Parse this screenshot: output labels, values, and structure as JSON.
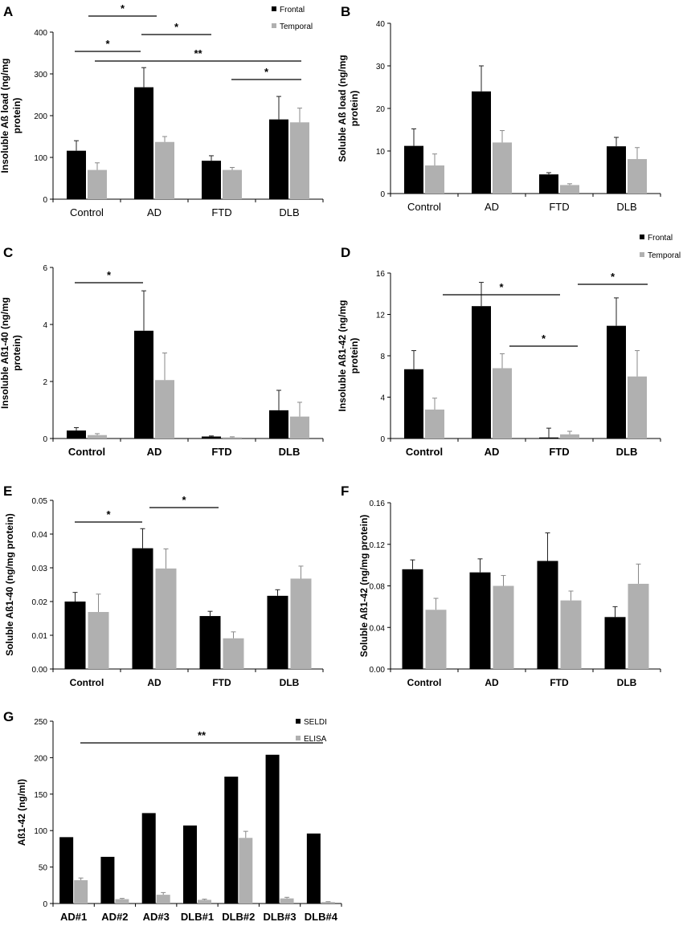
{
  "colors": {
    "frontal": "#000000",
    "temporal": "#b0b0b0",
    "axis": "#000000"
  },
  "chart_data": [
    {
      "type": "bar",
      "panel": "A",
      "categories": [
        "Control",
        "AD",
        "FTD",
        "DLB"
      ],
      "series": [
        {
          "name": "Frontal",
          "values": [
            116,
            268,
            92,
            191
          ],
          "errors": [
            24,
            47,
            12,
            55
          ]
        },
        {
          "name": "Temporal",
          "values": [
            70,
            137,
            70,
            184
          ],
          "errors": [
            17,
            13,
            6,
            34
          ]
        }
      ],
      "ylim": [
        0,
        400
      ],
      "yticks": [
        "0",
        "100",
        "200",
        "300",
        "400"
      ],
      "ylabel": [
        "Insoluble Aß load (ng/mg",
        "protein)"
      ],
      "legend": [
        "Frontal",
        "Temporal"
      ],
      "significance": [
        "*",
        "*",
        "*",
        "**",
        "*"
      ],
      "bold_ticks": false
    },
    {
      "type": "bar",
      "panel": "B",
      "categories": [
        "Control",
        "AD",
        "FTD",
        "DLB"
      ],
      "series": [
        {
          "name": "Frontal",
          "values": [
            11.2,
            24,
            4.5,
            11.1
          ],
          "errors": [
            4,
            6,
            0.4,
            2.1
          ]
        },
        {
          "name": "Temporal",
          "values": [
            6.6,
            12,
            2.0,
            8.1
          ],
          "errors": [
            2.7,
            2.8,
            0.3,
            2.7
          ]
        }
      ],
      "ylim": [
        0,
        40
      ],
      "yticks": [
        "0",
        "10",
        "20",
        "30",
        "40"
      ],
      "ylabel": [
        "Soluble Aß load (ng/mg",
        "protein)"
      ],
      "legend": [],
      "significance": [],
      "bold_ticks": false
    },
    {
      "type": "bar",
      "panel": "C",
      "categories": [
        "Control",
        "AD",
        "FTD",
        "DLB"
      ],
      "series": [
        {
          "name": "Frontal",
          "values": [
            0.28,
            3.78,
            0.07,
            0.99
          ],
          "errors": [
            0.1,
            1.4,
            0.02,
            0.7
          ]
        },
        {
          "name": "Temporal",
          "values": [
            0.12,
            2.05,
            0.04,
            0.77
          ],
          "errors": [
            0.05,
            0.95,
            0.02,
            0.5
          ]
        }
      ],
      "ylim": [
        0,
        6
      ],
      "yticks": [
        "0",
        "2",
        "4",
        "6"
      ],
      "ylabel": [
        "Insoluble Aß1-40 (ng/mg",
        "protein)"
      ],
      "legend": [],
      "significance": [
        "*"
      ],
      "bold_ticks": true
    },
    {
      "type": "bar",
      "panel": "D",
      "categories": [
        "Control",
        "AD",
        "FTD",
        "DLB"
      ],
      "series": [
        {
          "name": "Frontal",
          "values": [
            6.7,
            12.8,
            0.1,
            10.9
          ],
          "errors": [
            1.8,
            2.3,
            0.9,
            2.7
          ]
        },
        {
          "name": "Temporal",
          "values": [
            2.8,
            6.8,
            0.4,
            6.0
          ],
          "errors": [
            1.1,
            1.4,
            0.3,
            2.5
          ]
        }
      ],
      "ylim": [
        0,
        16
      ],
      "yticks": [
        "0",
        "4",
        "8",
        "12",
        "16"
      ],
      "ylabel": [
        "Insoluble Aß1-42 (ng/mg",
        "protein)"
      ],
      "legend": [
        "Frontal",
        "Temporal"
      ],
      "significance": [
        "*",
        "*",
        "*"
      ],
      "bold_ticks": true
    },
    {
      "type": "bar",
      "panel": "E",
      "categories": [
        "Control",
        "AD",
        "FTD",
        "DLB"
      ],
      "series": [
        {
          "name": "Frontal",
          "values": [
            0.02,
            0.0358,
            0.0157,
            0.0217
          ],
          "errors": [
            0.0027,
            0.0058,
            0.0014,
            0.0018
          ]
        },
        {
          "name": "Temporal",
          "values": [
            0.0169,
            0.0298,
            0.0091,
            0.0268
          ],
          "errors": [
            0.0053,
            0.0058,
            0.0019,
            0.0037
          ]
        }
      ],
      "ylim": [
        0,
        0.05
      ],
      "yticks": [
        "0.00",
        "0.01",
        "0.02",
        "0.03",
        "0.04",
        "0.05"
      ],
      "ylabel": [
        "Soluble Aß1-40 (ng/mg protein)"
      ],
      "legend": [],
      "significance": [
        "*",
        "*"
      ],
      "bold_ticks": true
    },
    {
      "type": "bar",
      "panel": "F",
      "categories": [
        "Control",
        "AD",
        "FTD",
        "DLB"
      ],
      "series": [
        {
          "name": "Frontal",
          "values": [
            0.096,
            0.093,
            0.104,
            0.05
          ],
          "errors": [
            0.009,
            0.013,
            0.027,
            0.01
          ]
        },
        {
          "name": "Temporal",
          "values": [
            0.057,
            0.08,
            0.066,
            0.082
          ],
          "errors": [
            0.011,
            0.01,
            0.009,
            0.019
          ]
        }
      ],
      "ylim": [
        0,
        0.16
      ],
      "yticks": [
        "0.00",
        "0.04",
        "0.08",
        "0.12",
        "0.16"
      ],
      "ylabel": [
        "Soluble Aß1-42 (ng/mg protein)"
      ],
      "legend": [],
      "significance": [],
      "bold_ticks": true
    },
    {
      "type": "bar",
      "panel": "G",
      "categories": [
        "AD#1",
        "AD#2",
        "AD#3",
        "DLB#1",
        "DLB#2",
        "DLB#3",
        "DLB#4"
      ],
      "series": [
        {
          "name": "SELDI",
          "values": [
            91,
            64,
            124,
            107,
            174,
            204,
            96
          ],
          "errors": [
            0,
            0,
            0,
            0,
            0,
            0,
            0
          ]
        },
        {
          "name": "ELISA",
          "values": [
            32,
            6,
            12,
            5,
            90,
            7,
            2
          ],
          "errors": [
            3,
            1,
            3,
            1,
            9,
            1.5,
            0.5
          ]
        }
      ],
      "ylim": [
        0,
        250
      ],
      "yticks": [
        "0",
        "50",
        "100",
        "150",
        "200",
        "250"
      ],
      "ylabel": [
        "Aß1-42 (ng/ml)"
      ],
      "legend": [
        "SELDI",
        "ELISA"
      ],
      "significance": [
        "**"
      ],
      "bold_ticks": true
    }
  ]
}
